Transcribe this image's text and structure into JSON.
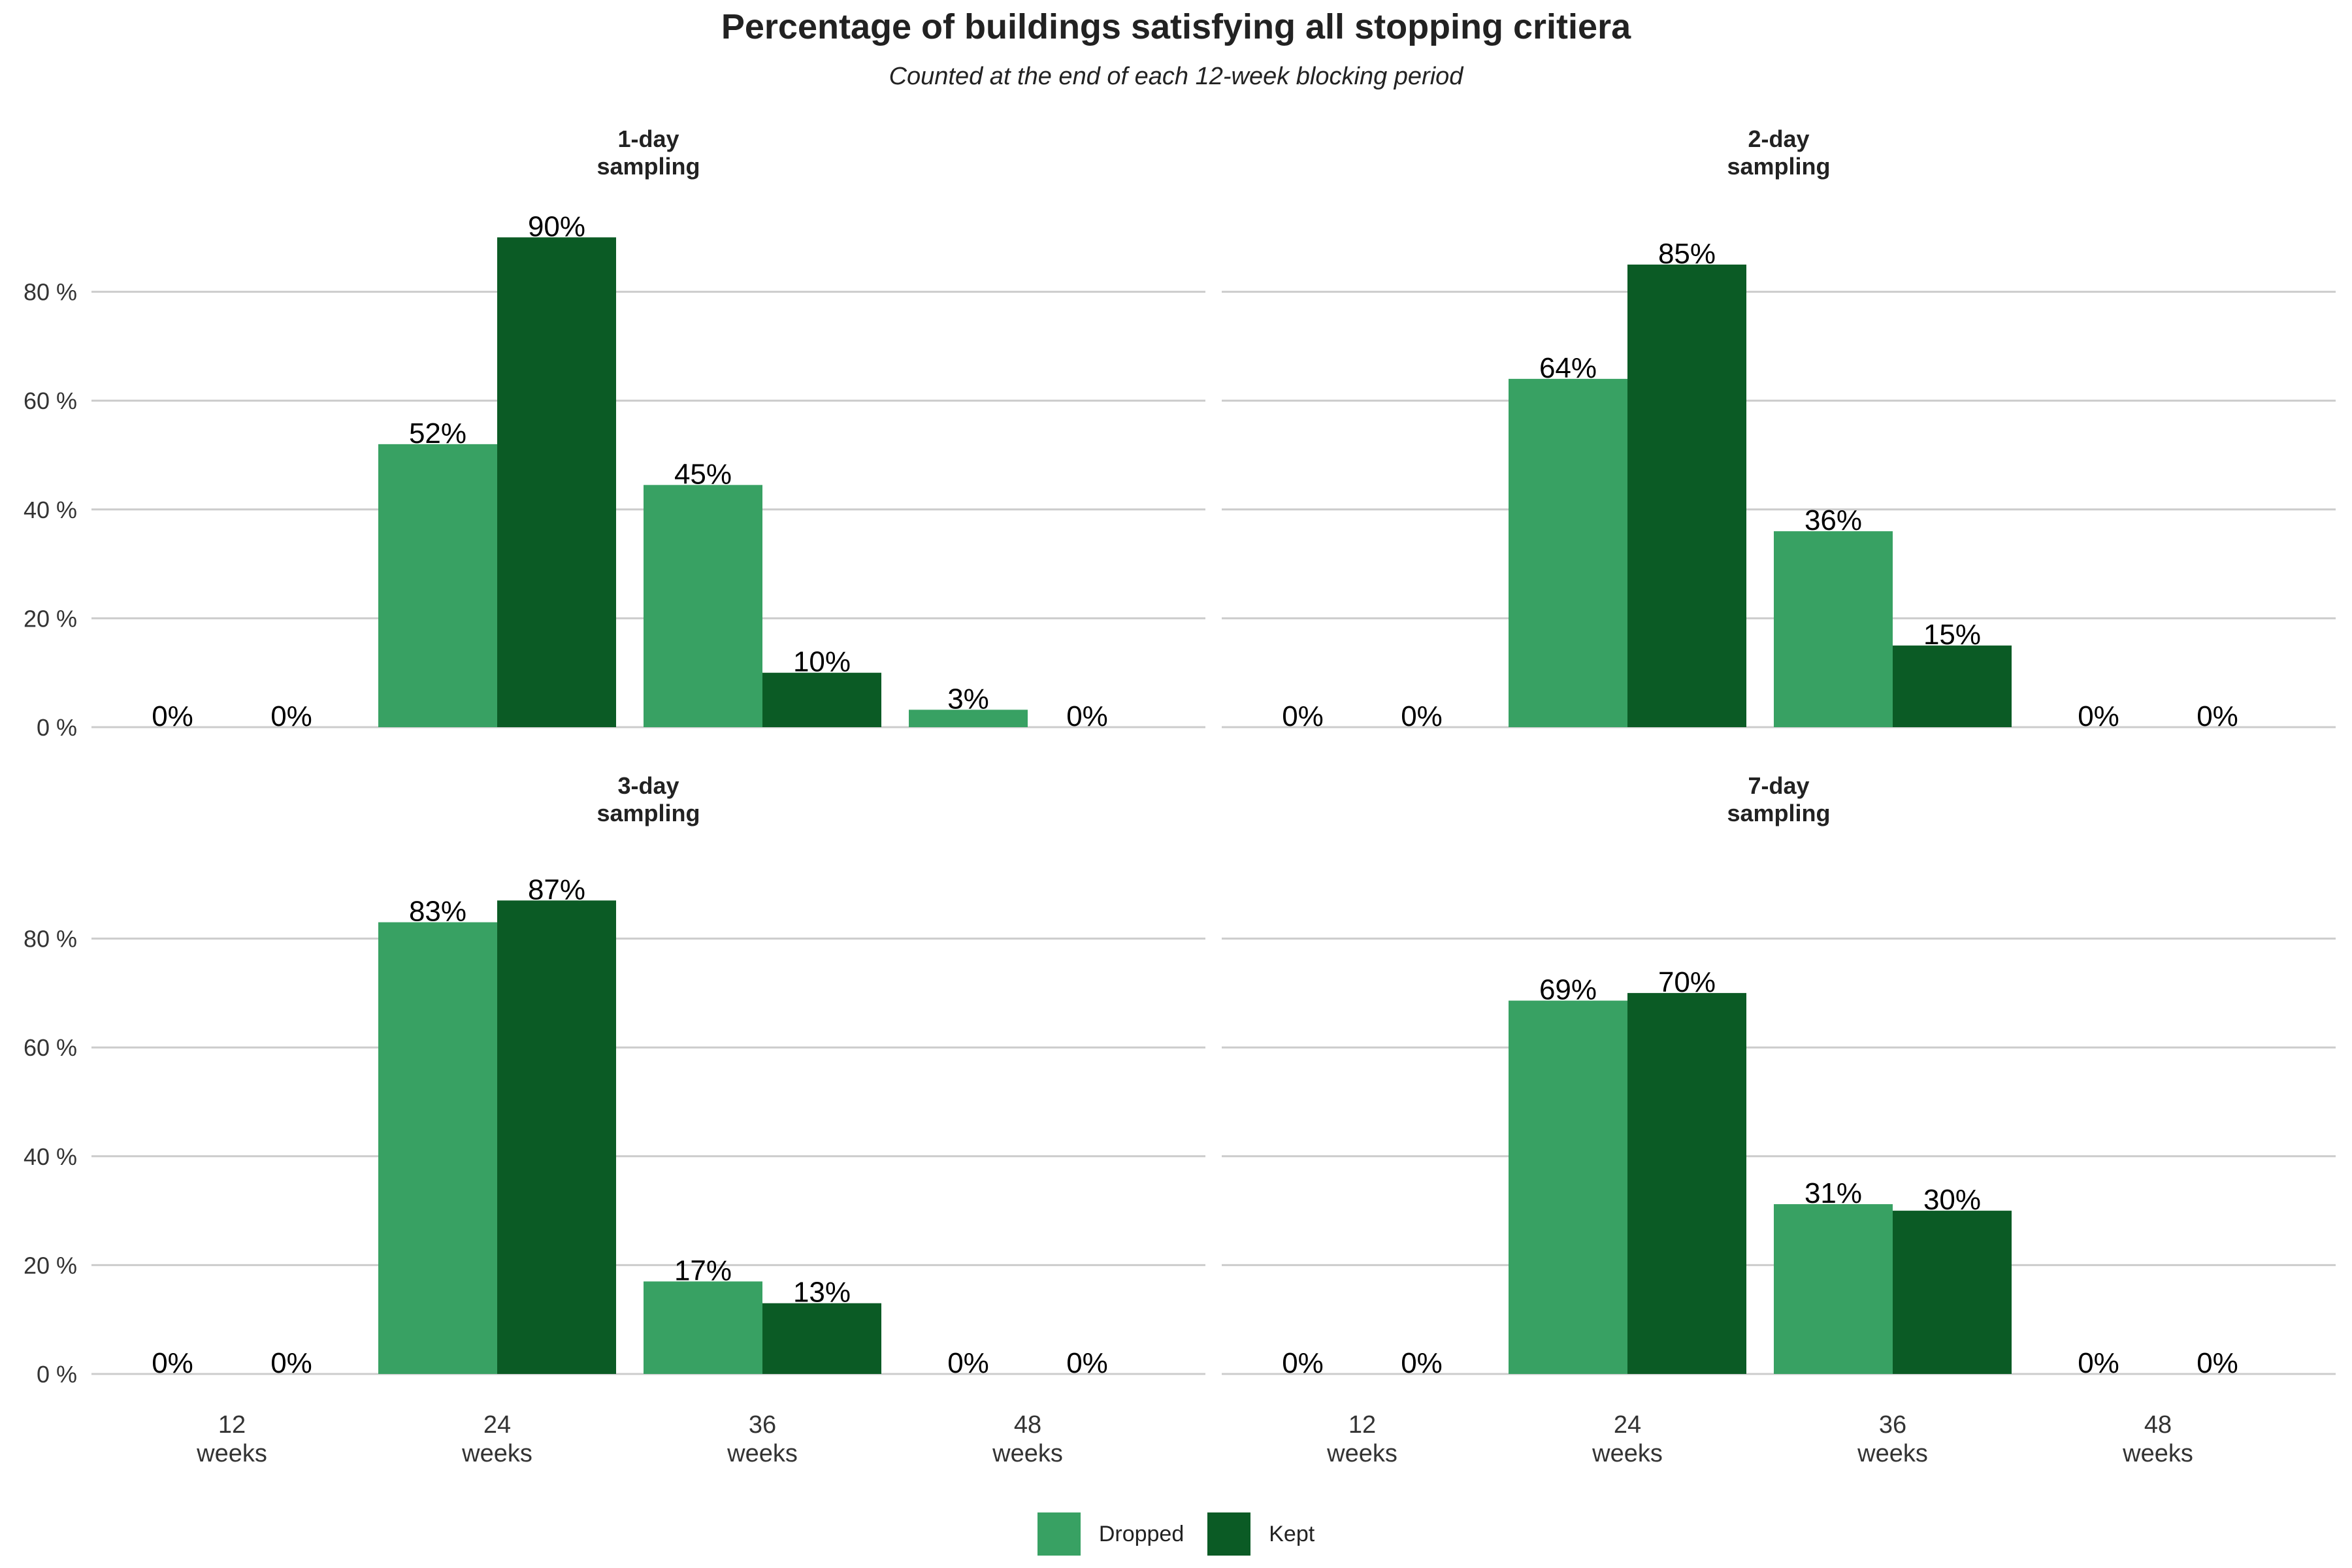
{
  "title": "Percentage of buildings satisfying all stopping critiera",
  "subtitle": "Counted at the end of each 12-week blocking period",
  "colors": {
    "dropped": "#38A163",
    "kept": "#0B5B25",
    "grid": "#CCCCCC",
    "text": "#222222"
  },
  "legend": [
    {
      "label": "Dropped",
      "color": "#38A163"
    },
    {
      "label": "Kept",
      "color": "#0B5B25"
    }
  ],
  "chart_data": {
    "type": "bar",
    "layout": "2x2 facets, grouped bars",
    "ylim": [
      0,
      100
    ],
    "y_ticks": [
      0,
      20,
      40,
      60,
      80
    ],
    "y_tick_labels": [
      "0 %",
      "20 %",
      "40 %",
      "60 %",
      "80 %"
    ],
    "categories": [
      [
        "12",
        "weeks"
      ],
      [
        "24",
        "weeks"
      ],
      [
        "36",
        "weeks"
      ],
      [
        "48",
        "weeks"
      ]
    ],
    "legend_position": "bottom",
    "grid": "horizontal",
    "facets": [
      {
        "title": [
          "1-day",
          "sampling"
        ],
        "series": [
          {
            "name": "Dropped",
            "values": [
              0,
              52,
              44.5,
              3.2
            ],
            "labels": [
              "0%",
              "52%",
              "45%",
              "3%"
            ]
          },
          {
            "name": "Kept",
            "values": [
              0,
              90,
              10,
              0
            ],
            "labels": [
              "0%",
              "90%",
              "10%",
              "0%"
            ]
          }
        ]
      },
      {
        "title": [
          "2-day",
          "sampling"
        ],
        "series": [
          {
            "name": "Dropped",
            "values": [
              0,
              64,
              36,
              0
            ],
            "labels": [
              "0%",
              "64%",
              "36%",
              "0%"
            ]
          },
          {
            "name": "Kept",
            "values": [
              0,
              85,
              15,
              0
            ],
            "labels": [
              "0%",
              "85%",
              "15%",
              "0%"
            ]
          }
        ]
      },
      {
        "title": [
          "3-day",
          "sampling"
        ],
        "series": [
          {
            "name": "Dropped",
            "values": [
              0,
              83,
              17,
              0
            ],
            "labels": [
              "0%",
              "83%",
              "17%",
              "0%"
            ]
          },
          {
            "name": "Kept",
            "values": [
              0,
              87,
              13,
              0
            ],
            "labels": [
              "0%",
              "87%",
              "13%",
              "0%"
            ]
          }
        ]
      },
      {
        "title": [
          "7-day",
          "sampling"
        ],
        "series": [
          {
            "name": "Dropped",
            "values": [
              0,
              68.6,
              31.2,
              0
            ],
            "labels": [
              "0%",
              "69%",
              "31%",
              "0%"
            ]
          },
          {
            "name": "Kept",
            "values": [
              0,
              70,
              30,
              0
            ],
            "labels": [
              "0%",
              "70%",
              "30%",
              "0%"
            ]
          }
        ]
      }
    ]
  }
}
